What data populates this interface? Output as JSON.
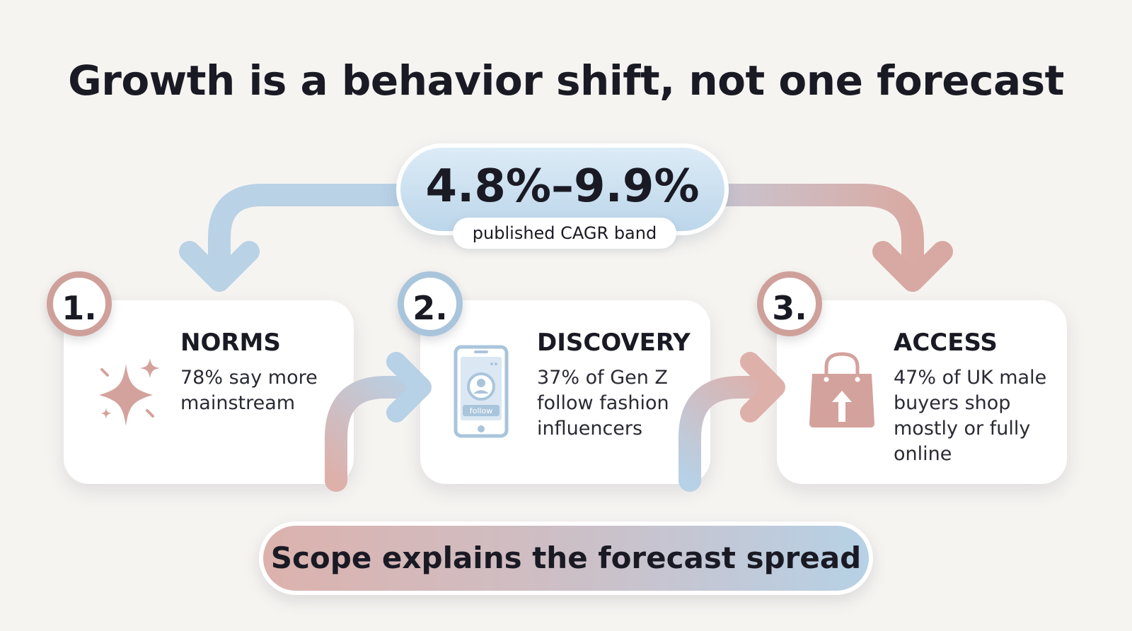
{
  "title": "Growth is a behavior shift, not one forecast",
  "cagr": {
    "value": "4.8%–9.9%",
    "label": "published CAGR band"
  },
  "steps": [
    {
      "number": "1.",
      "title": "NORMS",
      "text": "78% say more mainstream",
      "icon": "sparkle-icon"
    },
    {
      "number": "2.",
      "title": "DISCOVERY",
      "text": "37% of Gen Z follow fashion influencers",
      "icon": "phone-follow-icon",
      "icon_label": "follow"
    },
    {
      "number": "3.",
      "title": "ACCESS",
      "text": "47% of UK male buyers shop mostly or fully online",
      "icon": "shopping-bag-icon"
    }
  ],
  "footer": "Scope explains the forecast spread",
  "colors": {
    "rose": "#cfa09a",
    "blue": "#a9c5dc",
    "text": "#1a1a24",
    "background": "#f6f4f1"
  }
}
